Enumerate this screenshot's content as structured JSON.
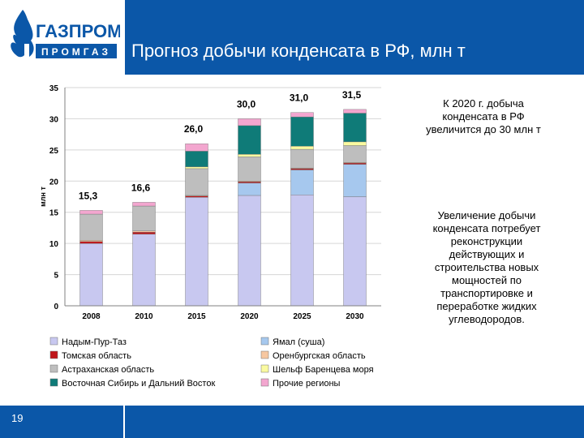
{
  "logo": {
    "brand": "ГАЗПРОМ",
    "sub": "ПРОМГАЗ"
  },
  "slide_title": "Прогноз добычи конденсата в РФ, млн т",
  "page_number": "19",
  "notes": [
    "К 2020 г. добыча конденсата в РФ увеличится до 30 млн т",
    "Увеличение добычи конденсата потребует реконструкции действующих и строительства новых мощностей по транспортировке и переработке жидких углеводородов."
  ],
  "colors": {
    "header": "#0b57a8"
  },
  "chart_data": {
    "type": "bar",
    "stacked": true,
    "categories": [
      "2008",
      "2010",
      "2015",
      "2020",
      "2025",
      "2030"
    ],
    "ylabel": "млн т",
    "ylim": [
      0,
      35
    ],
    "yticks": [
      0,
      5,
      10,
      15,
      20,
      25,
      30,
      35
    ],
    "totals": [
      "15,3",
      "16,6",
      "26,0",
      "30,0",
      "31,0",
      "31,5"
    ],
    "grid": true,
    "legend_placement": "bottom",
    "series": [
      {
        "name": "Надым-Пур-Таз",
        "color": "#c8c8f0",
        "values": [
          10.0,
          11.5,
          17.4,
          17.7,
          17.8,
          17.5
        ]
      },
      {
        "name": "Ямал (суша)",
        "color": "#a6c8ee",
        "values": [
          0,
          0,
          0,
          2.0,
          4.0,
          5.2
        ]
      },
      {
        "name": "Томская область",
        "color": "#c0161b",
        "values": [
          0.3,
          0.3,
          0.2,
          0.2,
          0.2,
          0.2
        ]
      },
      {
        "name": "Оренбургская область",
        "color": "#f7c7a0",
        "values": [
          0.2,
          0.2,
          0.1,
          0.1,
          0.1,
          0.1
        ]
      },
      {
        "name": "Астраханская область",
        "color": "#bebebe",
        "values": [
          4.2,
          4.0,
          4.3,
          3.9,
          3.0,
          2.7
        ]
      },
      {
        "name": "Шельф Баренцева моря",
        "color": "#fafaa0",
        "values": [
          0,
          0,
          0.3,
          0.4,
          0.5,
          0.6
        ]
      },
      {
        "name": "Восточная Сибирь и Дальний Восток",
        "color": "#0f7b78",
        "values": [
          0,
          0,
          2.5,
          4.6,
          4.7,
          4.6
        ]
      },
      {
        "name": "Прочие регионы",
        "color": "#f3a6cf",
        "values": [
          0.6,
          0.6,
          1.2,
          1.1,
          0.7,
          0.6
        ]
      }
    ],
    "legend_order": [
      "Надым-Пур-Таз",
      "Ямал (суша)",
      "Томская область",
      "Оренбургская область",
      "Астраханская область",
      "Шельф Баренцева моря",
      "Восточная Сибирь и Дальний Восток",
      "Прочие регионы"
    ]
  }
}
